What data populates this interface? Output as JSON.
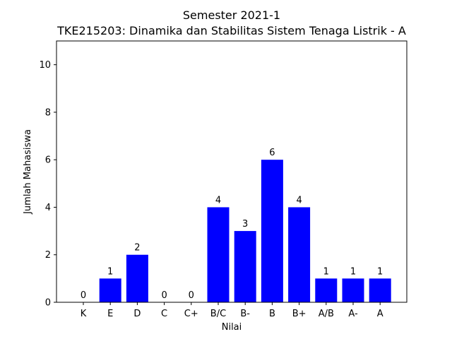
{
  "chart_data": {
    "type": "bar",
    "title": "Semester 2021-1",
    "subtitle": "TKE215203: Dinamika dan Stabilitas Sistem Tenaga Listrik - A",
    "xlabel": "Nilai",
    "ylabel": "Jumlah Mahasiswa",
    "categories": [
      "K",
      "E",
      "D",
      "C",
      "C+",
      "B/C",
      "B-",
      "B",
      "B+",
      "A/B",
      "A-",
      "A"
    ],
    "values": [
      0,
      1,
      2,
      0,
      0,
      4,
      3,
      6,
      4,
      1,
      1,
      1
    ],
    "ylim": [
      0,
      11
    ],
    "yticks": [
      0,
      2,
      4,
      6,
      8,
      10
    ],
    "bar_color": "#0000ff",
    "grid": false,
    "legend": "none"
  }
}
